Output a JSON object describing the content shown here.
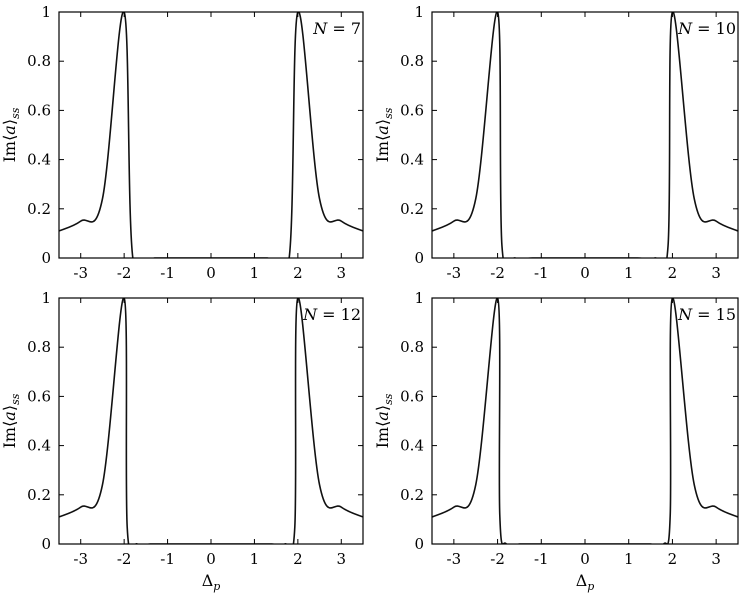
{
  "chart_data": [
    {
      "type": "line",
      "annotation": "N = 7",
      "ylabel": "Im⟨a⟩ss",
      "xlabel": "",
      "xlim": [
        -3.5,
        3.5
      ],
      "ylim": [
        0,
        1
      ],
      "xticks": [
        "-3",
        "-2",
        "-1",
        "0",
        "1",
        "2",
        "3"
      ],
      "yticks": [
        "0",
        "0.2",
        "0.4",
        "0.6",
        "0.8",
        "1"
      ],
      "grid": false,
      "series": [
        {
          "x": [
            -3.5,
            -3.0,
            -2.5,
            -2.0,
            -1.8,
            -1.3,
            -0.7,
            0.0,
            0.7,
            1.3,
            1.8,
            2.0,
            2.5,
            3.0,
            3.5
          ],
          "y": [
            0.11,
            0.15,
            0.24,
            1.0,
            0.0,
            0.0,
            0.0,
            0.0,
            0.0,
            0.0,
            0.0,
            1.0,
            0.24,
            0.15,
            0.11
          ]
        }
      ]
    },
    {
      "type": "line",
      "annotation": "N = 10",
      "ylabel": "Im⟨a⟩ss",
      "xlabel": "",
      "xlim": [
        -3.5,
        3.5
      ],
      "ylim": [
        0,
        1
      ],
      "xticks": [
        "-3",
        "-2",
        "-1",
        "0",
        "1",
        "2",
        "3"
      ],
      "yticks": [
        "0",
        "0.2",
        "0.4",
        "0.6",
        "0.8",
        "1"
      ],
      "grid": false,
      "series": [
        {
          "x": [
            -3.5,
            -3.0,
            -2.5,
            -2.0,
            -1.9,
            -1.6,
            -1.2,
            -0.8,
            -0.3,
            0.3,
            0.8,
            1.2,
            1.6,
            1.9,
            2.0,
            2.5,
            3.0,
            3.5
          ],
          "y": [
            0.11,
            0.15,
            0.24,
            1.0,
            0.05,
            0.0,
            0.0,
            0.0,
            0.0,
            0.0,
            0.0,
            0.0,
            0.0,
            0.05,
            1.0,
            0.24,
            0.15,
            0.11
          ]
        }
      ]
    },
    {
      "type": "line",
      "annotation": "N = 12",
      "ylabel": "Im⟨a⟩ss",
      "xlabel": "Δp",
      "xlim": [
        -3.5,
        3.5
      ],
      "ylim": [
        0,
        1
      ],
      "xticks": [
        "-3",
        "-2",
        "-1",
        "0",
        "1",
        "2",
        "3"
      ],
      "yticks": [
        "0",
        "0.2",
        "0.4",
        "0.6",
        "0.8",
        "1"
      ],
      "grid": false,
      "series": [
        {
          "x": [
            -3.5,
            -3.0,
            -2.5,
            -2.0,
            -1.93,
            -1.7,
            -1.4,
            -1.0,
            -0.6,
            -0.2,
            0.2,
            0.6,
            1.0,
            1.4,
            1.7,
            1.93,
            2.0,
            2.5,
            3.0,
            3.5
          ],
          "y": [
            0.11,
            0.15,
            0.24,
            1.0,
            0.07,
            0.0,
            0.0,
            0.0,
            0.0,
            0.0,
            0.0,
            0.0,
            0.0,
            0.0,
            0.0,
            0.07,
            1.0,
            0.24,
            0.15,
            0.11
          ]
        }
      ]
    },
    {
      "type": "line",
      "annotation": "N = 15",
      "ylabel": "Im⟨a⟩ss",
      "xlabel": "Δp",
      "xlim": [
        -3.5,
        3.5
      ],
      "ylim": [
        0,
        1
      ],
      "xticks": [
        "-3",
        "-2",
        "-1",
        "0",
        "1",
        "2",
        "3"
      ],
      "yticks": [
        "0",
        "0.2",
        "0.4",
        "0.6",
        "0.8",
        "1"
      ],
      "grid": false,
      "series": [
        {
          "x": [
            -3.5,
            -3.0,
            -2.5,
            -2.0,
            -1.95,
            -1.8,
            -1.5,
            -1.2,
            -0.8,
            -0.4,
            0.0,
            0.4,
            0.8,
            1.2,
            1.5,
            1.8,
            1.95,
            2.0,
            2.5,
            3.0,
            3.5
          ],
          "y": [
            0.11,
            0.15,
            0.24,
            1.0,
            0.12,
            0.0,
            0.0,
            0.0,
            0.0,
            0.0,
            0.0,
            0.0,
            0.0,
            0.0,
            0.0,
            0.0,
            0.12,
            1.0,
            0.24,
            0.15,
            0.11
          ]
        }
      ]
    }
  ]
}
